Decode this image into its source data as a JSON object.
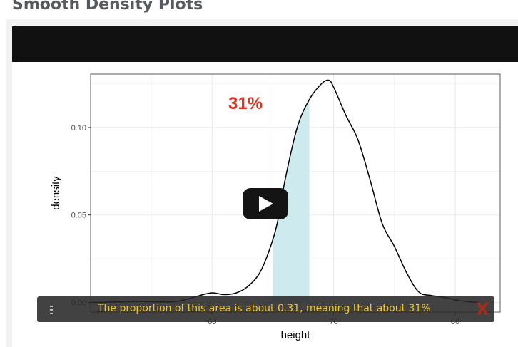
{
  "page": {
    "title": "Smooth Density Plots"
  },
  "video": {
    "play_label": "Play video"
  },
  "caption": {
    "text": "The proportion of this area is about 0.31, meaning that about 31%",
    "close_symbol": "X"
  },
  "colors": {
    "curve": "#000000",
    "shade": "#cdebef",
    "annotation": "#e8301a",
    "caption_text": "#f3c72b",
    "grid": "#ebebeb"
  },
  "chart_data": {
    "type": "area",
    "title": "",
    "xlabel": "height",
    "ylabel": "density",
    "xlim": [
      50,
      83.7
    ],
    "ylim": [
      -0.0055,
      0.1305
    ],
    "x_ticks": [
      60,
      70,
      80
    ],
    "x_tick_labels": [
      "60",
      "70",
      "80"
    ],
    "y_ticks": [
      0.0,
      0.05,
      0.1
    ],
    "y_tick_labels": [
      "0.00",
      "0.05",
      "0.10"
    ],
    "annotation": "31%",
    "shaded_range": [
      65,
      68
    ],
    "series": [
      {
        "name": "density",
        "x": [
          50,
          54,
          56,
          57,
          58,
          59,
          60,
          61,
          62,
          63,
          64,
          65,
          65.5,
          66,
          67,
          68,
          69,
          69.6,
          70,
          71,
          72,
          73,
          74,
          75,
          76,
          77,
          78,
          79,
          80,
          81,
          82
        ],
        "y": [
          0.0,
          0.0005,
          0.0003,
          0.0005,
          0.002,
          0.004,
          0.0055,
          0.0045,
          0.0055,
          0.0095,
          0.018,
          0.036,
          0.05,
          0.07,
          0.1,
          0.116,
          0.125,
          0.127,
          0.123,
          0.107,
          0.093,
          0.07,
          0.045,
          0.032,
          0.017,
          0.006,
          0.004,
          0.003,
          0.0015,
          0.0005,
          0.0
        ]
      }
    ]
  }
}
